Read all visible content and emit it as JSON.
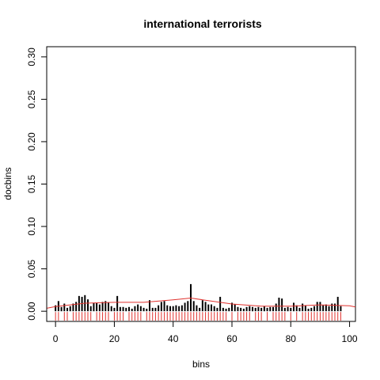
{
  "chart_data": {
    "type": "bar",
    "title": "international terrorists",
    "xlabel": "bins",
    "ylabel": "docbins",
    "xlim": [
      -3,
      102
    ],
    "ylim": [
      -0.012,
      0.312
    ],
    "x_ticks": [
      0,
      20,
      40,
      60,
      80,
      100
    ],
    "x_tick_labels": [
      "0",
      "20",
      "40",
      "60",
      "80",
      "100"
    ],
    "y_ticks": [
      0.0,
      0.05,
      0.1,
      0.15,
      0.2,
      0.25,
      0.3
    ],
    "y_tick_labels": [
      "0.00",
      "0.05",
      "0.10",
      "0.15",
      "0.20",
      "0.25",
      "0.30"
    ],
    "grid": false,
    "bar_color": "#000000",
    "curve_color": "#e0322e",
    "rug_color": "#e0322e",
    "x": [
      0,
      1,
      2,
      3,
      4,
      5,
      6,
      7,
      8,
      9,
      10,
      11,
      12,
      13,
      14,
      15,
      16,
      17,
      18,
      19,
      20,
      21,
      22,
      23,
      24,
      25,
      26,
      27,
      28,
      29,
      30,
      31,
      32,
      33,
      34,
      35,
      36,
      37,
      38,
      39,
      40,
      41,
      42,
      43,
      44,
      45,
      46,
      47,
      48,
      49,
      50,
      51,
      52,
      53,
      54,
      55,
      56,
      57,
      58,
      59,
      60,
      61,
      62,
      63,
      64,
      65,
      66,
      67,
      68,
      69,
      70,
      71,
      72,
      73,
      74,
      75,
      76,
      77,
      78,
      79,
      80,
      81,
      82,
      83,
      84,
      85,
      86,
      87,
      88,
      89,
      90,
      91,
      92,
      93,
      94,
      95,
      96,
      97
    ],
    "values": [
      0.007,
      0.012,
      0.005,
      0.009,
      0.004,
      0.006,
      0.009,
      0.011,
      0.018,
      0.017,
      0.019,
      0.014,
      0.006,
      0.01,
      0.01,
      0.008,
      0.011,
      0.012,
      0.01,
      0.006,
      0.004,
      0.018,
      0.005,
      0.005,
      0.004,
      0.005,
      0.003,
      0.006,
      0.008,
      0.006,
      0.004,
      0.003,
      0.013,
      0.004,
      0.004,
      0.007,
      0.011,
      0.012,
      0.007,
      0.006,
      0.006,
      0.007,
      0.006,
      0.007,
      0.01,
      0.012,
      0.032,
      0.012,
      0.007,
      0.004,
      0.013,
      0.011,
      0.008,
      0.008,
      0.006,
      0.004,
      0.017,
      0.004,
      0.003,
      0.004,
      0.01,
      0.008,
      0.005,
      0.004,
      0.003,
      0.005,
      0.006,
      0.005,
      0.004,
      0.005,
      0.004,
      0.006,
      0.004,
      0.005,
      0.005,
      0.009,
      0.016,
      0.015,
      0.004,
      0.005,
      0.004,
      0.01,
      0.007,
      0.004,
      0.009,
      0.007,
      0.003,
      0.004,
      0.006,
      0.011,
      0.011,
      0.007,
      0.008,
      0.006,
      0.009,
      0.009,
      0.017,
      0.006
    ],
    "smooth_curve": {
      "x": [
        -3,
        0,
        10,
        20,
        30,
        40,
        46,
        50,
        60,
        70,
        80,
        90,
        100,
        102
      ],
      "y": [
        0.0035,
        0.0055,
        0.0095,
        0.0105,
        0.0105,
        0.0135,
        0.0155,
        0.0135,
        0.0085,
        0.006,
        0.006,
        0.0075,
        0.0065,
        0.005
      ]
    },
    "rug_x": [
      0,
      1,
      3,
      4,
      6,
      7,
      8,
      9,
      10,
      11,
      12,
      14,
      15,
      16,
      17,
      18,
      20,
      21,
      22,
      23,
      25,
      26,
      27,
      28,
      29,
      31,
      32,
      33,
      34,
      35,
      36,
      37,
      38,
      39,
      40,
      41,
      42,
      43,
      44,
      45,
      46,
      47,
      48,
      49,
      50,
      51,
      52,
      53,
      54,
      55,
      56,
      57,
      58,
      60,
      62,
      63,
      64,
      65,
      66,
      68,
      69,
      70,
      72,
      74,
      75,
      76,
      77,
      78,
      80,
      82,
      84,
      85,
      86,
      87,
      88,
      89,
      90,
      91,
      92,
      93,
      94,
      95,
      96,
      97
    ]
  }
}
